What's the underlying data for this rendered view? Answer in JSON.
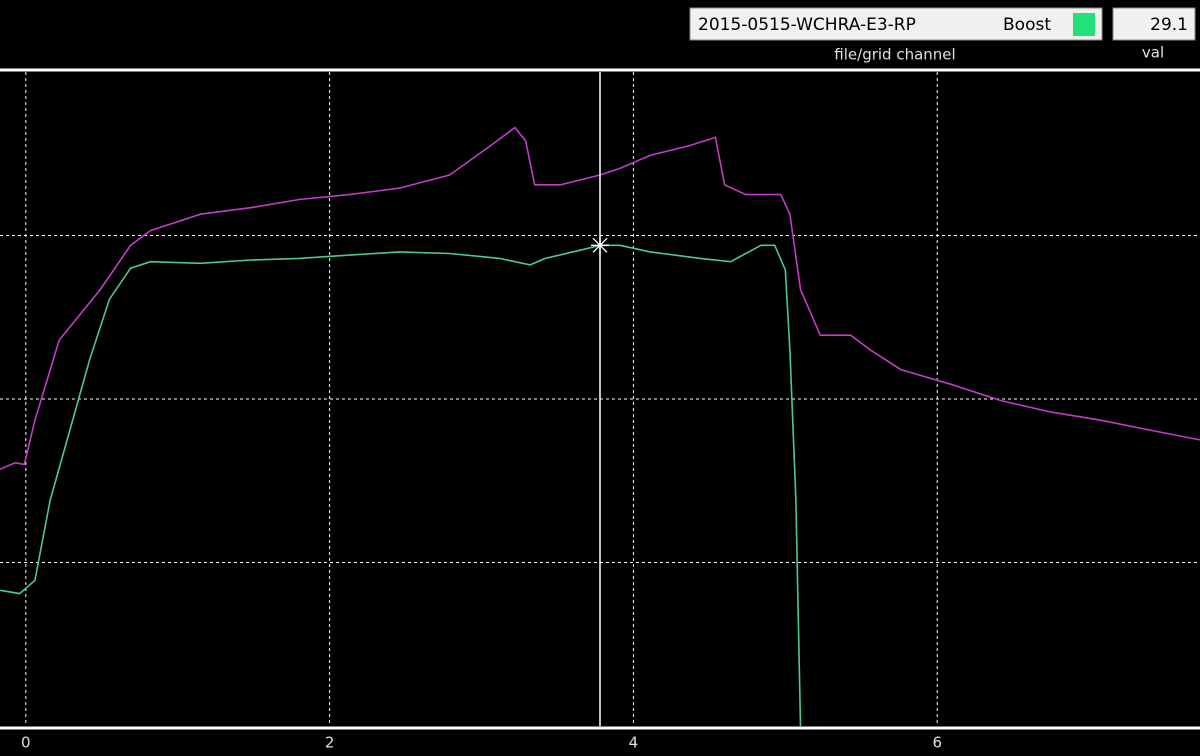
{
  "header": {
    "file": "2015-0515-WCHRA-E3-RP",
    "channel": "Boost",
    "channel_color": "#22e07a",
    "value": "29.1",
    "file_label": "file/grid channel",
    "value_label": "val"
  },
  "chart_data": {
    "type": "line",
    "xlim": [
      -0.17,
      7.73
    ],
    "xticks": [
      0,
      2,
      4,
      6
    ],
    "ylim": [
      0,
      4
    ],
    "ygrid": [
      1,
      2,
      3
    ],
    "grid": true,
    "cursor": {
      "x": 3.78,
      "y": 2.94
    },
    "series": [
      {
        "color": "#c23cc8",
        "x": [
          -0.17,
          -0.07,
          -0.01,
          0.06,
          0.22,
          0.49,
          0.69,
          0.82,
          1.15,
          1.48,
          1.8,
          2.13,
          2.46,
          2.79,
          3.06,
          3.22,
          3.29,
          3.35,
          3.52,
          3.78,
          3.91,
          4.11,
          4.37,
          4.54,
          4.6,
          4.74,
          4.97,
          5.03,
          5.1,
          5.23,
          5.43,
          5.56,
          5.76,
          6.09,
          6.42,
          6.75,
          7.08,
          7.4,
          7.73
        ],
        "values": [
          1.57,
          1.61,
          1.6,
          1.87,
          2.36,
          2.67,
          2.94,
          3.03,
          3.13,
          3.17,
          3.22,
          3.25,
          3.29,
          3.37,
          3.55,
          3.66,
          3.58,
          3.31,
          3.31,
          3.37,
          3.41,
          3.49,
          3.55,
          3.6,
          3.31,
          3.25,
          3.25,
          3.13,
          2.67,
          2.39,
          2.39,
          2.3,
          2.18,
          2.09,
          1.99,
          1.92,
          1.87,
          1.81,
          1.75
        ]
      },
      {
        "color": "#4ec98e",
        "x": [
          -0.17,
          -0.04,
          0.06,
          0.16,
          0.29,
          0.42,
          0.55,
          0.69,
          0.82,
          1.15,
          1.48,
          1.8,
          2.13,
          2.46,
          2.79,
          3.12,
          3.32,
          3.42,
          3.65,
          3.78,
          3.91,
          4.11,
          4.44,
          4.64,
          4.84,
          4.93,
          5.0,
          5.03,
          5.07,
          5.1
        ],
        "values": [
          0.83,
          0.81,
          0.89,
          1.38,
          1.81,
          2.24,
          2.61,
          2.8,
          2.84,
          2.83,
          2.85,
          2.86,
          2.88,
          2.9,
          2.89,
          2.86,
          2.82,
          2.86,
          2.91,
          2.94,
          2.94,
          2.9,
          2.86,
          2.84,
          2.94,
          2.94,
          2.79,
          2.3,
          1.38,
          0
        ]
      }
    ]
  }
}
